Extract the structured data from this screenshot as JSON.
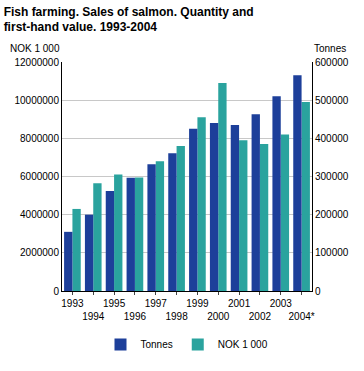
{
  "chart_data": {
    "type": "bar",
    "title": "Fish farming. Sales of salmon. Quantity and first-hand value. 1993-2004",
    "ylabel": "NOK 1 000",
    "y2label": "Tonnes",
    "categories": [
      "1993",
      "1994",
      "1995",
      "1996",
      "1997",
      "1998",
      "1999",
      "2000",
      "2001",
      "2002",
      "2003",
      "2004*"
    ],
    "series": [
      {
        "name": "Tonnes",
        "color": "#1d3f9a",
        "axis": "y2",
        "values": [
          155000,
          200000,
          262000,
          297000,
          332000,
          361000,
          425000,
          440000,
          435000,
          463000,
          510000,
          565000
        ]
      },
      {
        "name": "NOK 1 000",
        "color": "#2aa39e",
        "values": [
          4300000,
          5650000,
          6100000,
          5950000,
          6800000,
          7600000,
          9100000,
          10900000,
          7900000,
          7700000,
          8200000,
          9900000
        ]
      }
    ],
    "ylim": [
      0,
      12000000
    ],
    "yticks": [
      0,
      2000000,
      4000000,
      6000000,
      8000000,
      10000000,
      12000000
    ],
    "y2lim": [
      0,
      600000
    ],
    "y2ticks": [
      0,
      100000,
      200000,
      300000,
      400000,
      500000,
      600000
    ],
    "grid": true,
    "legend": "bottom"
  }
}
